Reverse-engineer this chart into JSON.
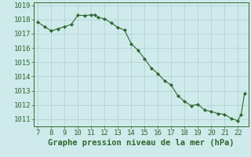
{
  "x": [
    7,
    7.5,
    8,
    8.5,
    9,
    9.5,
    10,
    10.5,
    11,
    11.25,
    11.5,
    12,
    12.5,
    13,
    13.5,
    14,
    14.5,
    15,
    15.5,
    16,
    16.5,
    17,
    17.5,
    18,
    18.5,
    19,
    19.5,
    20,
    20.5,
    21,
    21.5,
    22,
    22.25,
    22.5
  ],
  "y": [
    1017.8,
    1017.5,
    1017.2,
    1017.35,
    1017.5,
    1017.65,
    1018.3,
    1018.28,
    1018.32,
    1018.32,
    1018.15,
    1018.05,
    1017.75,
    1017.45,
    1017.25,
    1016.3,
    1015.85,
    1015.25,
    1014.6,
    1014.2,
    1013.7,
    1013.4,
    1012.65,
    1012.25,
    1011.95,
    1012.05,
    1011.65,
    1011.55,
    1011.4,
    1011.35,
    1011.05,
    1010.9,
    1011.35,
    1012.8
  ],
  "xlim": [
    6.7,
    22.8
  ],
  "ylim": [
    1010.5,
    1019.2
  ],
  "xticks": [
    7,
    8,
    9,
    10,
    11,
    12,
    13,
    14,
    15,
    16,
    17,
    18,
    19,
    20,
    21,
    22
  ],
  "yticks": [
    1011,
    1012,
    1013,
    1014,
    1015,
    1016,
    1017,
    1018,
    1019
  ],
  "xlabel": "Graphe pression niveau de la mer (hPa)",
  "line_color": "#2d6a2d",
  "marker": "D",
  "marker_size": 2.0,
  "bg_color": "#ceeaea",
  "grid_color": "#aecfcf",
  "tick_fontsize": 6.5,
  "xlabel_fontsize": 7.5
}
